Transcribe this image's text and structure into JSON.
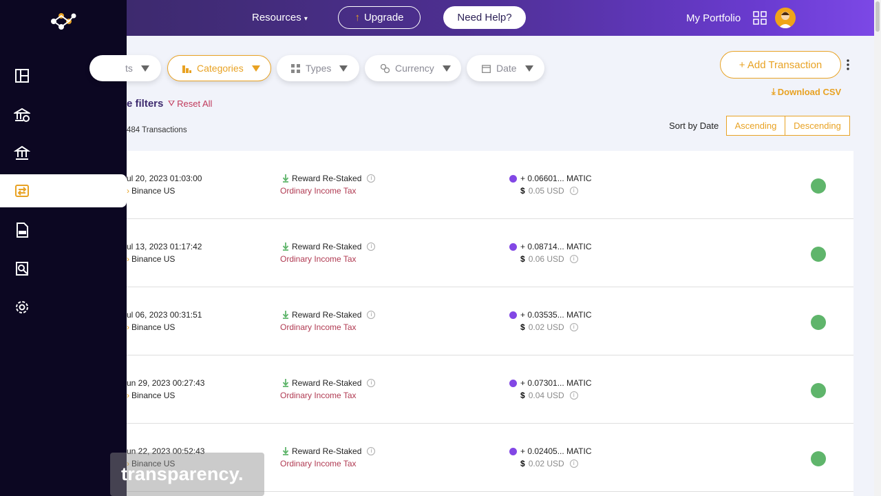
{
  "header": {
    "resources_label": "Resources",
    "upgrade_label": "Upgrade",
    "help_label": "Need Help?",
    "portfolio_label": "My Portfolio"
  },
  "filters": {
    "accounts_label": "ts",
    "categories_label": "Categories",
    "types_label": "Types",
    "currency_label": "Currency",
    "date_label": "Date",
    "section_label": "e filters",
    "reset_label": "Reset All",
    "count_label": "484 Transactions"
  },
  "actions": {
    "add_label": "+ Add Transaction",
    "download_label": "Download CSV"
  },
  "sort": {
    "label": "Sort by Date",
    "asc_label": "Ascending",
    "desc_label": "Descending"
  },
  "transactions": [
    {
      "date": "ul 20, 2023 01:03:00",
      "exchange": "Binance US",
      "type": "Reward Re-Staked",
      "tax": "Ordinary Income Tax",
      "amount": "+ 0.06601... MATIC",
      "usd": "0.05 USD"
    },
    {
      "date": "ul 13, 2023 01:17:42",
      "exchange": "Binance US",
      "type": "Reward Re-Staked",
      "tax": "Ordinary Income Tax",
      "amount": "+ 0.08714... MATIC",
      "usd": "0.06 USD"
    },
    {
      "date": "ul 06, 2023 00:31:51",
      "exchange": "Binance US",
      "type": "Reward Re-Staked",
      "tax": "Ordinary Income Tax",
      "amount": "+ 0.03535... MATIC",
      "usd": "0.02 USD"
    },
    {
      "date": "un 29, 2023 00:27:43",
      "exchange": "Binance US",
      "type": "Reward Re-Staked",
      "tax": "Ordinary Income Tax",
      "amount": "+ 0.07301... MATIC",
      "usd": "0.04 USD"
    },
    {
      "date": "un 22, 2023 00:52:43",
      "exchange": "Binance US",
      "type": "Reward Re-Staked",
      "tax": "Ordinary Income Tax",
      "amount": "+ 0.02405... MATIC",
      "usd": "0.02 USD"
    }
  ],
  "caption": "transparency.",
  "colors": {
    "accent": "#e8a223",
    "sidebar": "#0c0722",
    "header_start": "#3d2a6e",
    "header_end": "#7c48e6",
    "tax_red": "#b03a52",
    "like_green": "#5fb56b"
  },
  "icons": {
    "nav": [
      "dashboard-icon",
      "bank-settings-icon",
      "bank-icon",
      "transactions-icon",
      "tax-report-icon",
      "search-report-icon",
      "gear-icon"
    ]
  }
}
